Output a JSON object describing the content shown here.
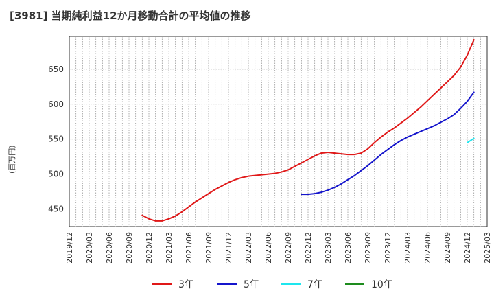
{
  "title": "[3981]  当期純利益12か月移動合計の平均値の推移",
  "y_unit_label": "(百万円)",
  "chart_data": {
    "type": "line",
    "ylim": [
      425,
      697
    ],
    "yticks": [
      450,
      500,
      550,
      600,
      650
    ],
    "x_tick_labels": [
      "2019/12",
      "2020/03",
      "2020/06",
      "2020/09",
      "2020/12",
      "2021/03",
      "2021/06",
      "2021/09",
      "2021/12",
      "2022/03",
      "2022/06",
      "2022/09",
      "2022/12",
      "2023/03",
      "2023/06",
      "2023/09",
      "2023/12",
      "2024/03",
      "2024/06",
      "2024/09",
      "2024/12",
      "2025/03"
    ],
    "grid": true,
    "legend_position": "bottom",
    "series": [
      {
        "name": "3年",
        "color": "#e01818",
        "points": [
          [
            "2020/11",
            441
          ],
          [
            "2020/12",
            436
          ],
          [
            "2021/01",
            433
          ],
          [
            "2021/02",
            433
          ],
          [
            "2021/03",
            436
          ],
          [
            "2021/04",
            440
          ],
          [
            "2021/05",
            446
          ],
          [
            "2021/06",
            453
          ],
          [
            "2021/07",
            460
          ],
          [
            "2021/08",
            466
          ],
          [
            "2021/09",
            472
          ],
          [
            "2021/10",
            478
          ],
          [
            "2021/11",
            483
          ],
          [
            "2021/12",
            488
          ],
          [
            "2022/01",
            492
          ],
          [
            "2022/02",
            495
          ],
          [
            "2022/03",
            497
          ],
          [
            "2022/04",
            498
          ],
          [
            "2022/05",
            499
          ],
          [
            "2022/06",
            500
          ],
          [
            "2022/07",
            501
          ],
          [
            "2022/08",
            503
          ],
          [
            "2022/09",
            506
          ],
          [
            "2022/10",
            511
          ],
          [
            "2022/11",
            516
          ],
          [
            "2022/12",
            521
          ],
          [
            "2023/01",
            526
          ],
          [
            "2023/02",
            530
          ],
          [
            "2023/03",
            531
          ],
          [
            "2023/04",
            530
          ],
          [
            "2023/05",
            529
          ],
          [
            "2023/06",
            528
          ],
          [
            "2023/07",
            528
          ],
          [
            "2023/08",
            530
          ],
          [
            "2023/09",
            536
          ],
          [
            "2023/10",
            545
          ],
          [
            "2023/11",
            553
          ],
          [
            "2023/12",
            560
          ],
          [
            "2024/01",
            566
          ],
          [
            "2024/02",
            573
          ],
          [
            "2024/03",
            580
          ],
          [
            "2024/04",
            588
          ],
          [
            "2024/05",
            596
          ],
          [
            "2024/06",
            605
          ],
          [
            "2024/07",
            614
          ],
          [
            "2024/08",
            623
          ],
          [
            "2024/09",
            632
          ],
          [
            "2024/10",
            641
          ],
          [
            "2024/11",
            653
          ],
          [
            "2024/12",
            670
          ],
          [
            "2025/01",
            692
          ]
        ]
      },
      {
        "name": "5年",
        "color": "#1515cc",
        "points": [
          [
            "2022/11",
            471
          ],
          [
            "2022/12",
            471
          ],
          [
            "2023/01",
            472
          ],
          [
            "2023/02",
            474
          ],
          [
            "2023/03",
            477
          ],
          [
            "2023/04",
            481
          ],
          [
            "2023/05",
            486
          ],
          [
            "2023/06",
            492
          ],
          [
            "2023/07",
            498
          ],
          [
            "2023/08",
            505
          ],
          [
            "2023/09",
            512
          ],
          [
            "2023/10",
            520
          ],
          [
            "2023/11",
            528
          ],
          [
            "2023/12",
            535
          ],
          [
            "2024/01",
            542
          ],
          [
            "2024/02",
            548
          ],
          [
            "2024/03",
            553
          ],
          [
            "2024/04",
            557
          ],
          [
            "2024/05",
            561
          ],
          [
            "2024/06",
            565
          ],
          [
            "2024/07",
            569
          ],
          [
            "2024/08",
            574
          ],
          [
            "2024/09",
            579
          ],
          [
            "2024/10",
            585
          ],
          [
            "2024/11",
            594
          ],
          [
            "2024/12",
            604
          ],
          [
            "2025/01",
            617
          ]
        ]
      },
      {
        "name": "7年",
        "color": "#1ee6ee",
        "points": [
          [
            "2024/12",
            545
          ],
          [
            "2025/01",
            551
          ]
        ]
      },
      {
        "name": "10年",
        "color": "#1e8c1e",
        "points": []
      }
    ]
  }
}
